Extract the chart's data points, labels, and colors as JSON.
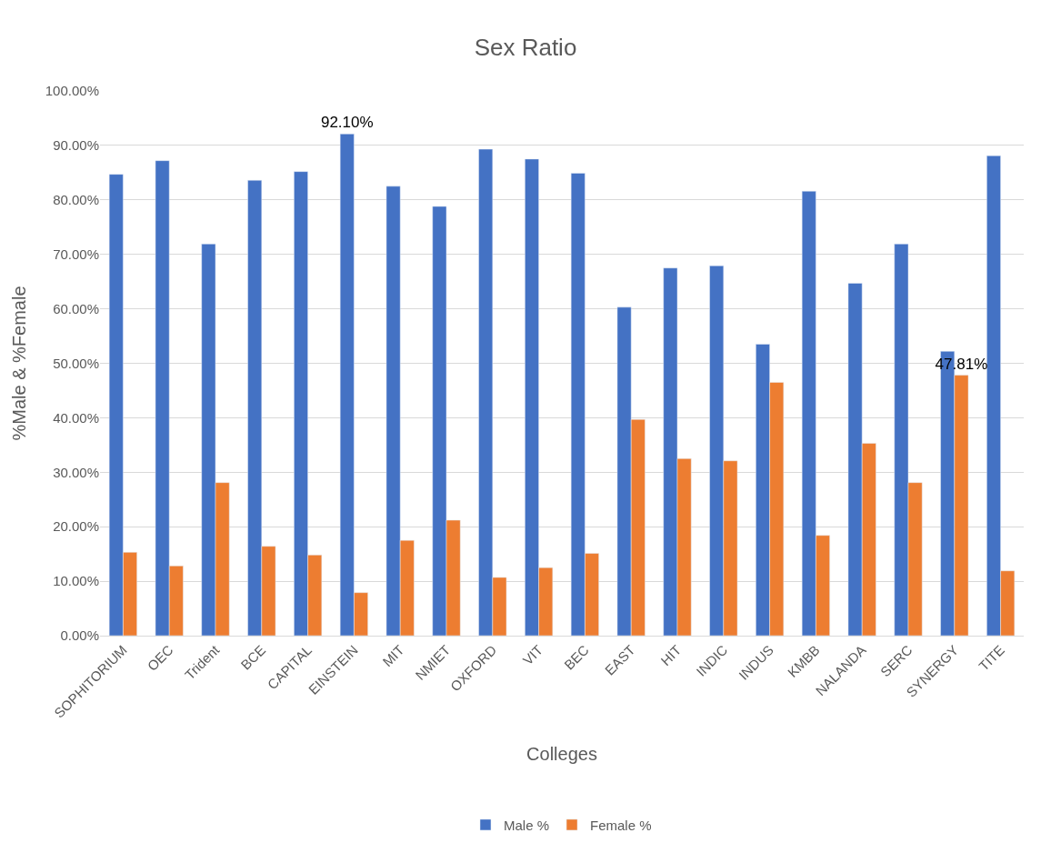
{
  "chart_data": {
    "type": "bar",
    "title": "Sex Ratio",
    "xlabel": "Colleges",
    "ylabel": "%Male & %Female",
    "categories": [
      "SOPHITORIUM",
      "OEC",
      "Trident",
      "BCE",
      "CAPITAL",
      "EINSTEIN",
      "MIT",
      "NMIET",
      "OXFORD",
      "VIT",
      "BEC",
      "EAST",
      "HIT",
      "INDIC",
      "INDUS",
      "KMBB",
      "NALANDA",
      "SERC",
      "SYNERGY",
      "TITE"
    ],
    "series": [
      {
        "name": "Male %",
        "color": "#4472c4",
        "values": [
          84.7,
          87.2,
          71.9,
          83.6,
          85.2,
          92.1,
          82.5,
          78.8,
          89.3,
          87.5,
          84.9,
          60.3,
          67.5,
          67.9,
          53.5,
          81.6,
          64.7,
          71.9,
          52.2,
          88.1
        ],
        "value_labels": [
          null,
          null,
          null,
          null,
          null,
          "92.10%",
          null,
          null,
          null,
          null,
          null,
          null,
          null,
          null,
          null,
          null,
          null,
          null,
          null,
          null
        ]
      },
      {
        "name": "Female %",
        "color": "#ed7d31",
        "values": [
          15.3,
          12.8,
          28.1,
          16.4,
          14.8,
          7.9,
          17.5,
          21.2,
          10.7,
          12.5,
          15.1,
          39.7,
          32.5,
          32.1,
          46.5,
          18.4,
          35.3,
          28.1,
          47.81,
          11.9
        ],
        "value_labels": [
          null,
          null,
          null,
          null,
          null,
          null,
          null,
          null,
          null,
          null,
          null,
          null,
          null,
          null,
          null,
          null,
          null,
          null,
          "47.81%",
          null
        ]
      }
    ],
    "ylim": [
      0,
      100
    ],
    "yticks": [
      {
        "value": 0,
        "label": "0.00%"
      },
      {
        "value": 10,
        "label": "10.00%"
      },
      {
        "value": 20,
        "label": "20.00%"
      },
      {
        "value": 30,
        "label": "30.00%"
      },
      {
        "value": 40,
        "label": "40.00%"
      },
      {
        "value": 50,
        "label": "50.00%"
      },
      {
        "value": 60,
        "label": "60.00%"
      },
      {
        "value": 70,
        "label": "70.00%"
      },
      {
        "value": 80,
        "label": "80.00%"
      },
      {
        "value": 90,
        "label": "90.00%"
      },
      {
        "value": 100,
        "label": "100.00%"
      }
    ],
    "grid": "y",
    "legend": "bottom"
  }
}
